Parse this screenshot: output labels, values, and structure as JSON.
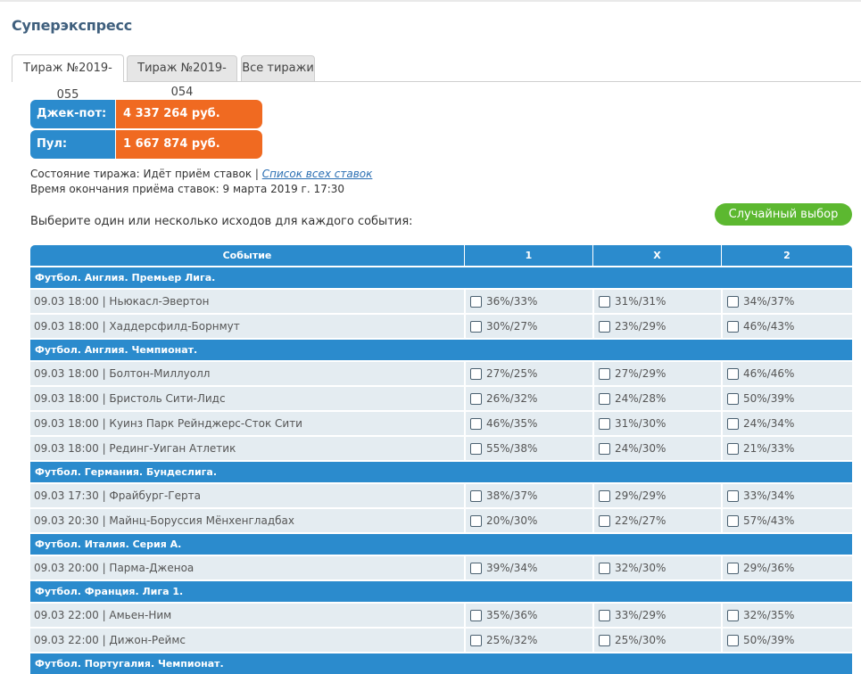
{
  "page_title": "Суперэкспресс",
  "tabs": [
    {
      "label": "Тираж №2019-055"
    },
    {
      "label": "Тираж №2019-054"
    },
    {
      "label": "Все тиражи"
    }
  ],
  "jackpot": {
    "label": "Джек-пот:",
    "value": "4 337 264 руб."
  },
  "pool": {
    "label": "Пул:",
    "value": "1 667 874 руб."
  },
  "status": {
    "prefix": "Состояние тиража: Идёт приём ставок |",
    "link": "Список всех ставок"
  },
  "end_time": "Время окончания приёма ставок: 9 марта 2019 г. 17:30",
  "instruction": "Выберите один или несколько исходов для каждого события:",
  "random_button": "Случайный выбор",
  "table": {
    "headers": {
      "event": "Событие",
      "o1": "1",
      "ox": "X",
      "o2": "2"
    },
    "groups": [
      {
        "name": "Футбол. Англия. Премьер Лига.",
        "matches": [
          {
            "event": "09.03 18:00 | Ньюкасл-Эвертон",
            "o1": "36%/33%",
            "ox": "31%/31%",
            "o2": "34%/37%"
          },
          {
            "event": "09.03 18:00 | Хаддерсфилд-Борнмут",
            "o1": "30%/27%",
            "ox": "23%/29%",
            "o2": "46%/43%"
          }
        ]
      },
      {
        "name": "Футбол. Англия. Чемпионат.",
        "matches": [
          {
            "event": "09.03 18:00 | Болтон-Миллуолл",
            "o1": "27%/25%",
            "ox": "27%/29%",
            "o2": "46%/46%"
          },
          {
            "event": "09.03 18:00 | Бристоль Сити-Лидс",
            "o1": "26%/32%",
            "ox": "24%/28%",
            "o2": "50%/39%"
          },
          {
            "event": "09.03 18:00 | Куинз Парк Рейнджерс-Сток Сити",
            "o1": "46%/35%",
            "ox": "31%/30%",
            "o2": "24%/34%"
          },
          {
            "event": "09.03 18:00 | Рединг-Уиган Атлетик",
            "o1": "55%/38%",
            "ox": "24%/30%",
            "o2": "21%/33%"
          }
        ]
      },
      {
        "name": "Футбол. Германия. Бундеслига.",
        "matches": [
          {
            "event": "09.03 17:30 | Фрайбург-Герта",
            "o1": "38%/37%",
            "ox": "29%/29%",
            "o2": "33%/34%"
          },
          {
            "event": "09.03 20:30 | Майнц-Боруссия Мёнхенгладбах",
            "o1": "20%/30%",
            "ox": "22%/27%",
            "o2": "57%/43%"
          }
        ]
      },
      {
        "name": "Футбол. Италия. Серия А.",
        "matches": [
          {
            "event": "09.03 20:00 | Парма-Дженоа",
            "o1": "39%/34%",
            "ox": "32%/30%",
            "o2": "29%/36%"
          }
        ]
      },
      {
        "name": "Футбол. Франция. Лига 1.",
        "matches": [
          {
            "event": "09.03 22:00 | Амьен-Ним",
            "o1": "35%/36%",
            "ox": "33%/29%",
            "o2": "32%/35%"
          },
          {
            "event": "09.03 22:00 | Дижон-Реймс",
            "o1": "25%/32%",
            "ox": "25%/30%",
            "o2": "50%/39%"
          }
        ]
      },
      {
        "name": "Футбол. Португалия. Чемпионат.",
        "matches": []
      }
    ]
  }
}
